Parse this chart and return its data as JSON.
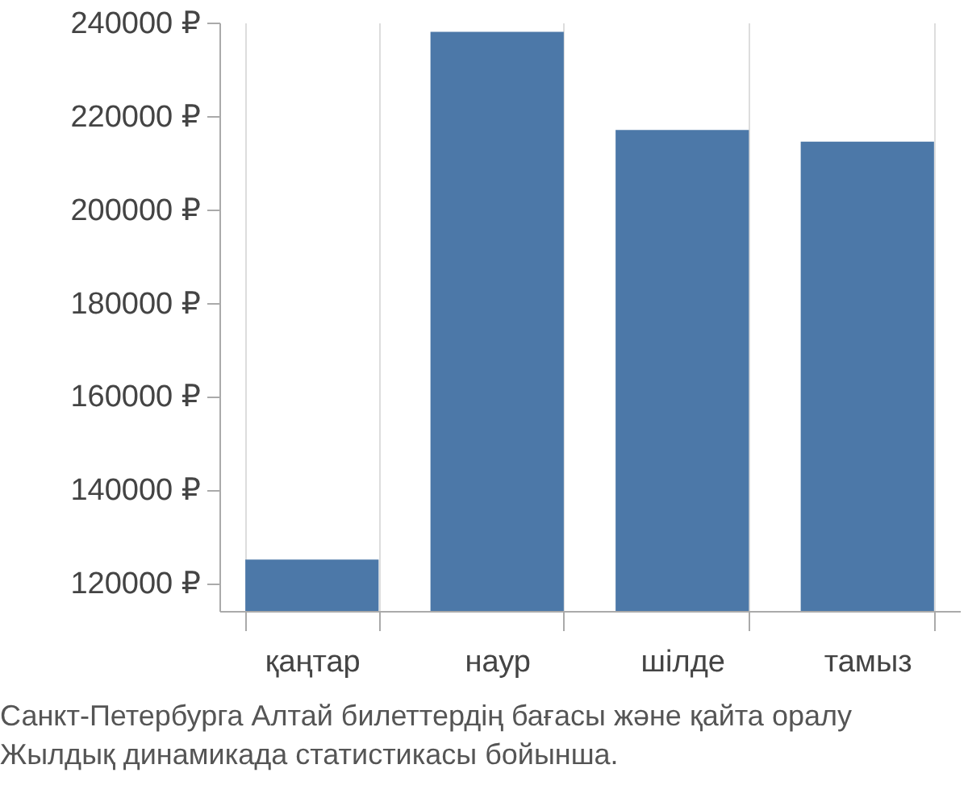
{
  "chart_data": {
    "type": "bar",
    "categories": [
      "қаңтар",
      "наур",
      "шілде",
      "тамыз"
    ],
    "series": [
      {
        "color": "#4c78a8",
        "values": [
          125000,
          238000,
          217000,
          214500
        ]
      }
    ],
    "ylim": [
      114000,
      240000
    ],
    "yticks": [
      {
        "value": 120000,
        "label": "120000 ₽"
      },
      {
        "value": 140000,
        "label": "140000 ₽"
      },
      {
        "value": 160000,
        "label": "160000 ₽"
      },
      {
        "value": 180000,
        "label": "180000 ₽"
      },
      {
        "value": 200000,
        "label": "200000 ₽"
      },
      {
        "value": 220000,
        "label": "220000 ₽"
      },
      {
        "value": 240000,
        "label": "240000 ₽"
      }
    ],
    "grid": "x",
    "annotations": [
      "Санкт-Петербурга Алтай билеттердің бағасы және қайта оралу",
      "Жылдық динамикада статистикасы бойынша."
    ]
  }
}
